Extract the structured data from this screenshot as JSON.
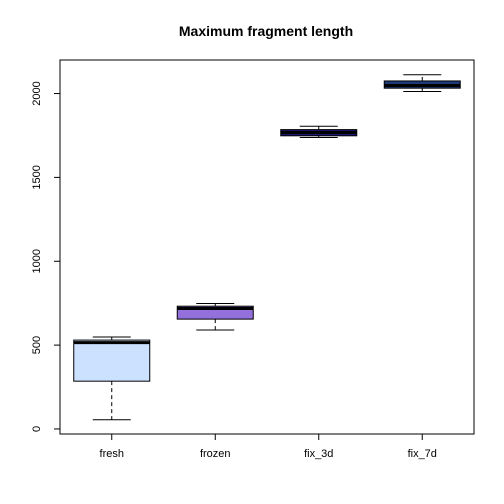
{
  "chart_data": {
    "type": "boxplot",
    "title": "Maximum fragment length",
    "xlabel": "",
    "ylabel": "",
    "ylim": [
      -30,
      2200
    ],
    "yticks": [
      0,
      500,
      1000,
      1500,
      2000
    ],
    "ytick_labels": [
      "0",
      "500",
      "1000",
      "1500",
      "2000"
    ],
    "grid": false,
    "categories": [
      "fresh",
      "frozen",
      "fix_3d",
      "fix_7d"
    ],
    "boxes": [
      {
        "category": "fresh",
        "whisker_low": 55,
        "q1": 285,
        "median": 515,
        "q3": 530,
        "whisker_high": 548,
        "color": "#cce0ff"
      },
      {
        "category": "frozen",
        "whisker_low": 590,
        "q1": 655,
        "median": 718,
        "q3": 732,
        "whisker_high": 748,
        "color": "#9370db"
      },
      {
        "category": "fix_3d",
        "whisker_low": 1738,
        "q1": 1748,
        "median": 1768,
        "q3": 1785,
        "whisker_high": 1805,
        "color": "#191970"
      },
      {
        "category": "fix_7d",
        "whisker_low": 2012,
        "q1": 2032,
        "median": 2048,
        "q3": 2075,
        "whisker_high": 2112,
        "color": "#1f3a7a"
      }
    ]
  }
}
